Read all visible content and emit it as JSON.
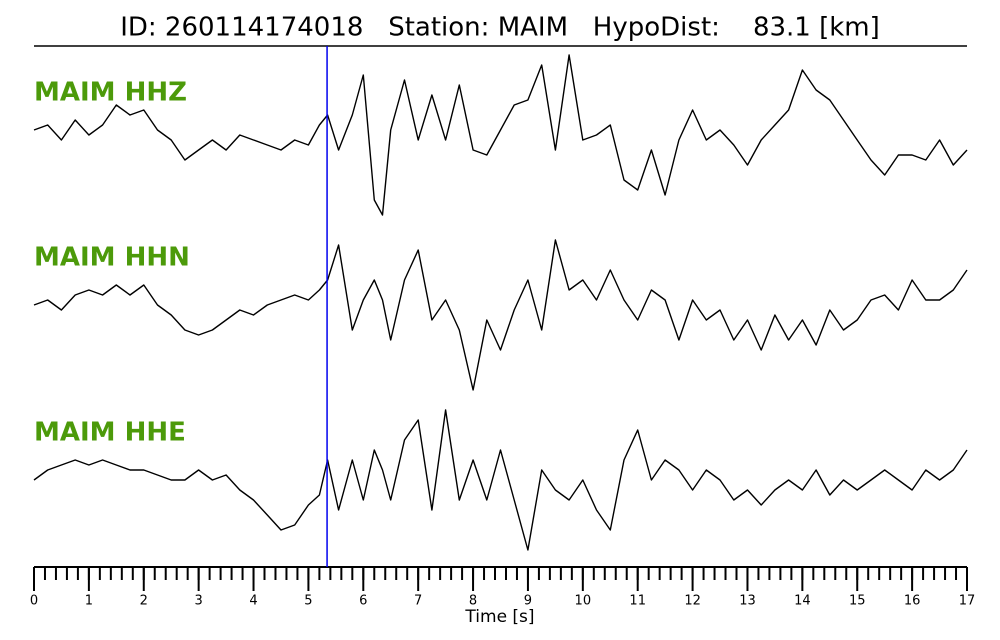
{
  "chart_data": {
    "type": "line",
    "title": "ID: 260114174018   Station: MAIM   HypoDist:    83.1 [km]",
    "x_label": "Time [s]",
    "xlim": [
      0,
      17
    ],
    "xticks": [
      0,
      1,
      2,
      3,
      4,
      5,
      6,
      7,
      8,
      9,
      10,
      11,
      12,
      13,
      14,
      15,
      16,
      17
    ],
    "xminor_step": 0.2,
    "ylim": [
      -90,
      90
    ],
    "pick_time": 5.34,
    "pick_color": "#0000ee",
    "label_color": "#4c9a0a",
    "x": [
      0,
      0.25,
      0.5,
      0.75,
      1,
      1.25,
      1.5,
      1.75,
      2,
      2.25,
      2.5,
      2.75,
      3,
      3.25,
      3.5,
      3.75,
      4,
      4.25,
      4.5,
      4.75,
      5,
      5.2,
      5.35,
      5.55,
      5.8,
      6.0,
      6.2,
      6.35,
      6.5,
      6.75,
      7.0,
      7.25,
      7.5,
      7.75,
      8.0,
      8.25,
      8.5,
      8.75,
      9.0,
      9.25,
      9.5,
      9.75,
      10.0,
      10.25,
      10.5,
      10.75,
      11.0,
      11.25,
      11.5,
      11.75,
      12.0,
      12.25,
      12.5,
      12.75,
      13.0,
      13.25,
      13.5,
      13.75,
      14.0,
      14.25,
      14.5,
      14.75,
      15.0,
      15.25,
      15.5,
      15.75,
      16.0,
      16.25,
      16.5,
      16.75,
      17.0
    ],
    "series": [
      {
        "name": "MAIM HHZ",
        "color": "#000000",
        "values": [
          10,
          15,
          0,
          20,
          5,
          15,
          35,
          25,
          30,
          10,
          0,
          -20,
          -10,
          0,
          -10,
          5,
          0,
          -5,
          -10,
          0,
          -5,
          15,
          25,
          -10,
          25,
          65,
          -60,
          -75,
          10,
          60,
          0,
          45,
          0,
          55,
          -10,
          -15,
          10,
          35,
          40,
          75,
          -10,
          85,
          0,
          5,
          15,
          -40,
          -50,
          -10,
          -55,
          0,
          30,
          0,
          10,
          -5,
          -25,
          0,
          15,
          30,
          70,
          50,
          40,
          20,
          0,
          -20,
          -35,
          -15,
          -15,
          -20,
          0,
          -25,
          -10
        ]
      },
      {
        "name": "MAIM HHN",
        "color": "#000000",
        "values": [
          0,
          5,
          -5,
          10,
          15,
          10,
          20,
          10,
          20,
          0,
          -10,
          -25,
          -30,
          -25,
          -15,
          -5,
          -10,
          0,
          5,
          10,
          5,
          15,
          25,
          60,
          -25,
          5,
          25,
          5,
          -35,
          25,
          55,
          -15,
          5,
          -25,
          -85,
          -15,
          -45,
          -5,
          25,
          -25,
          65,
          15,
          25,
          5,
          35,
          5,
          -15,
          15,
          5,
          -35,
          5,
          -15,
          -5,
          -35,
          -15,
          -45,
          -10,
          -35,
          -15,
          -40,
          -5,
          -25,
          -15,
          5,
          10,
          -5,
          25,
          5,
          5,
          15,
          35
        ]
      },
      {
        "name": "MAIM HHE",
        "color": "#000000",
        "values": [
          0,
          10,
          15,
          20,
          15,
          20,
          15,
          10,
          10,
          5,
          0,
          0,
          10,
          0,
          5,
          -10,
          -20,
          -35,
          -50,
          -45,
          -25,
          -15,
          20,
          -30,
          20,
          -20,
          30,
          10,
          -20,
          40,
          60,
          -30,
          70,
          -20,
          20,
          -20,
          30,
          -20,
          -70,
          10,
          -10,
          -20,
          0,
          -30,
          -50,
          20,
          50,
          0,
          20,
          10,
          -10,
          10,
          0,
          -20,
          -10,
          -25,
          -10,
          0,
          -10,
          10,
          -15,
          0,
          -10,
          0,
          10,
          0,
          -10,
          10,
          0,
          10,
          30
        ]
      }
    ]
  }
}
